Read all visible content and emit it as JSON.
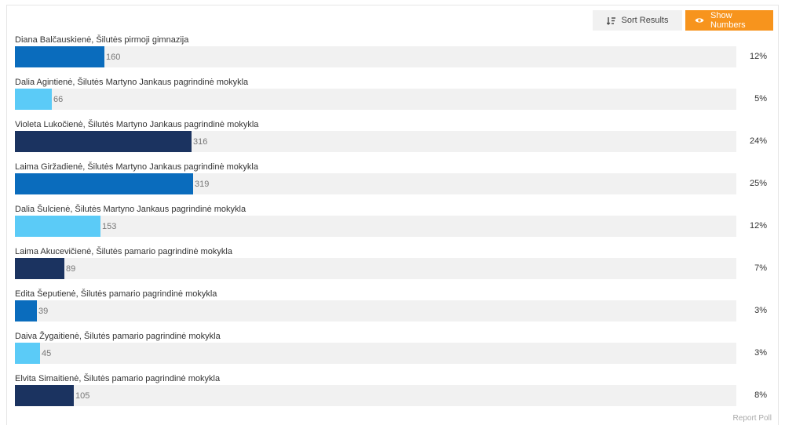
{
  "toolbar": {
    "sort_label": "Sort Results",
    "show_label": "Show Numbers",
    "sort_icon": "sort-icon",
    "show_icon": "eye-icon"
  },
  "colors": {
    "track": "#f1f1f1",
    "accent": "#f7941d",
    "series": [
      "#0a6cbd",
      "#5bcbf7",
      "#1b3360"
    ]
  },
  "results": [
    {
      "label": "Diana Balčauskienė, Šilutės pirmoji gimnazija",
      "count": "160",
      "value": 160,
      "percent": "12%"
    },
    {
      "label": "Dalia Agintienė, Šilutės Martyno Jankaus pagrindinė mokykla",
      "count": "66",
      "value": 66,
      "percent": "5%"
    },
    {
      "label": "Violeta Lukočienė, Šilutės Martyno Jankaus pagrindinė mokykla",
      "count": "316",
      "value": 316,
      "percent": "24%"
    },
    {
      "label": "Laima Giržadienė, Šilutės Martyno Jankaus pagrindinė mokykla",
      "count": "319",
      "value": 319,
      "percent": "25%"
    },
    {
      "label": "Dalia Šulcienė, Šilutės Martyno Jankaus pagrindinė mokykla",
      "count": "153",
      "value": 153,
      "percent": "12%"
    },
    {
      "label": "Laima Akucevičienė, Šilutės pamario pagrindinė mokykla",
      "count": "89",
      "value": 89,
      "percent": "7%"
    },
    {
      "label": "Edita Šeputienė, Šilutės pamario pagrindinė mokykla",
      "count": "39",
      "value": 39,
      "percent": "3%"
    },
    {
      "label": "Daiva Žygaitienė, Šilutės pamario pagrindinė mokykla",
      "count": "45",
      "value": 45,
      "percent": "3%"
    },
    {
      "label": "Elvita Simaitienė, Šilutės pamario pagrindinė mokykla",
      "count": "105",
      "value": 105,
      "percent": "8%"
    }
  ],
  "footer": {
    "report_label": "Report Poll"
  }
}
